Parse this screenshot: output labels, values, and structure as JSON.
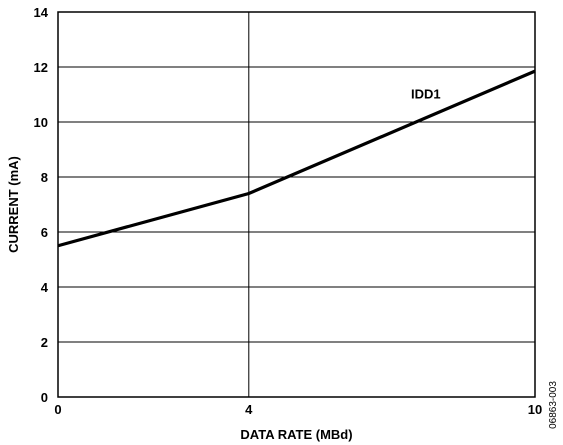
{
  "chart_data": {
    "type": "line",
    "xlabel": "DATA RATE (MBd)",
    "ylabel": "CURRENT (mA)",
    "xlim": [
      0,
      10
    ],
    "ylim": [
      0,
      14
    ],
    "x_ticks": [
      0,
      4,
      10
    ],
    "x_tick_labels": [
      "0",
      "4",
      "10"
    ],
    "y_ticks": [
      0,
      2,
      4,
      6,
      8,
      10,
      12,
      14
    ],
    "y_tick_labels": [
      "0",
      "2",
      "4",
      "6",
      "8",
      "10",
      "12",
      "14"
    ],
    "grid": true,
    "series": [
      {
        "name": "IDD1",
        "x": [
          0,
          4,
          10
        ],
        "y": [
          5.5,
          7.4,
          11.85
        ]
      }
    ],
    "annotations": [
      {
        "text": "IDD1",
        "x": 7.4,
        "y": 11
      }
    ],
    "figure_id": "06863-003"
  }
}
